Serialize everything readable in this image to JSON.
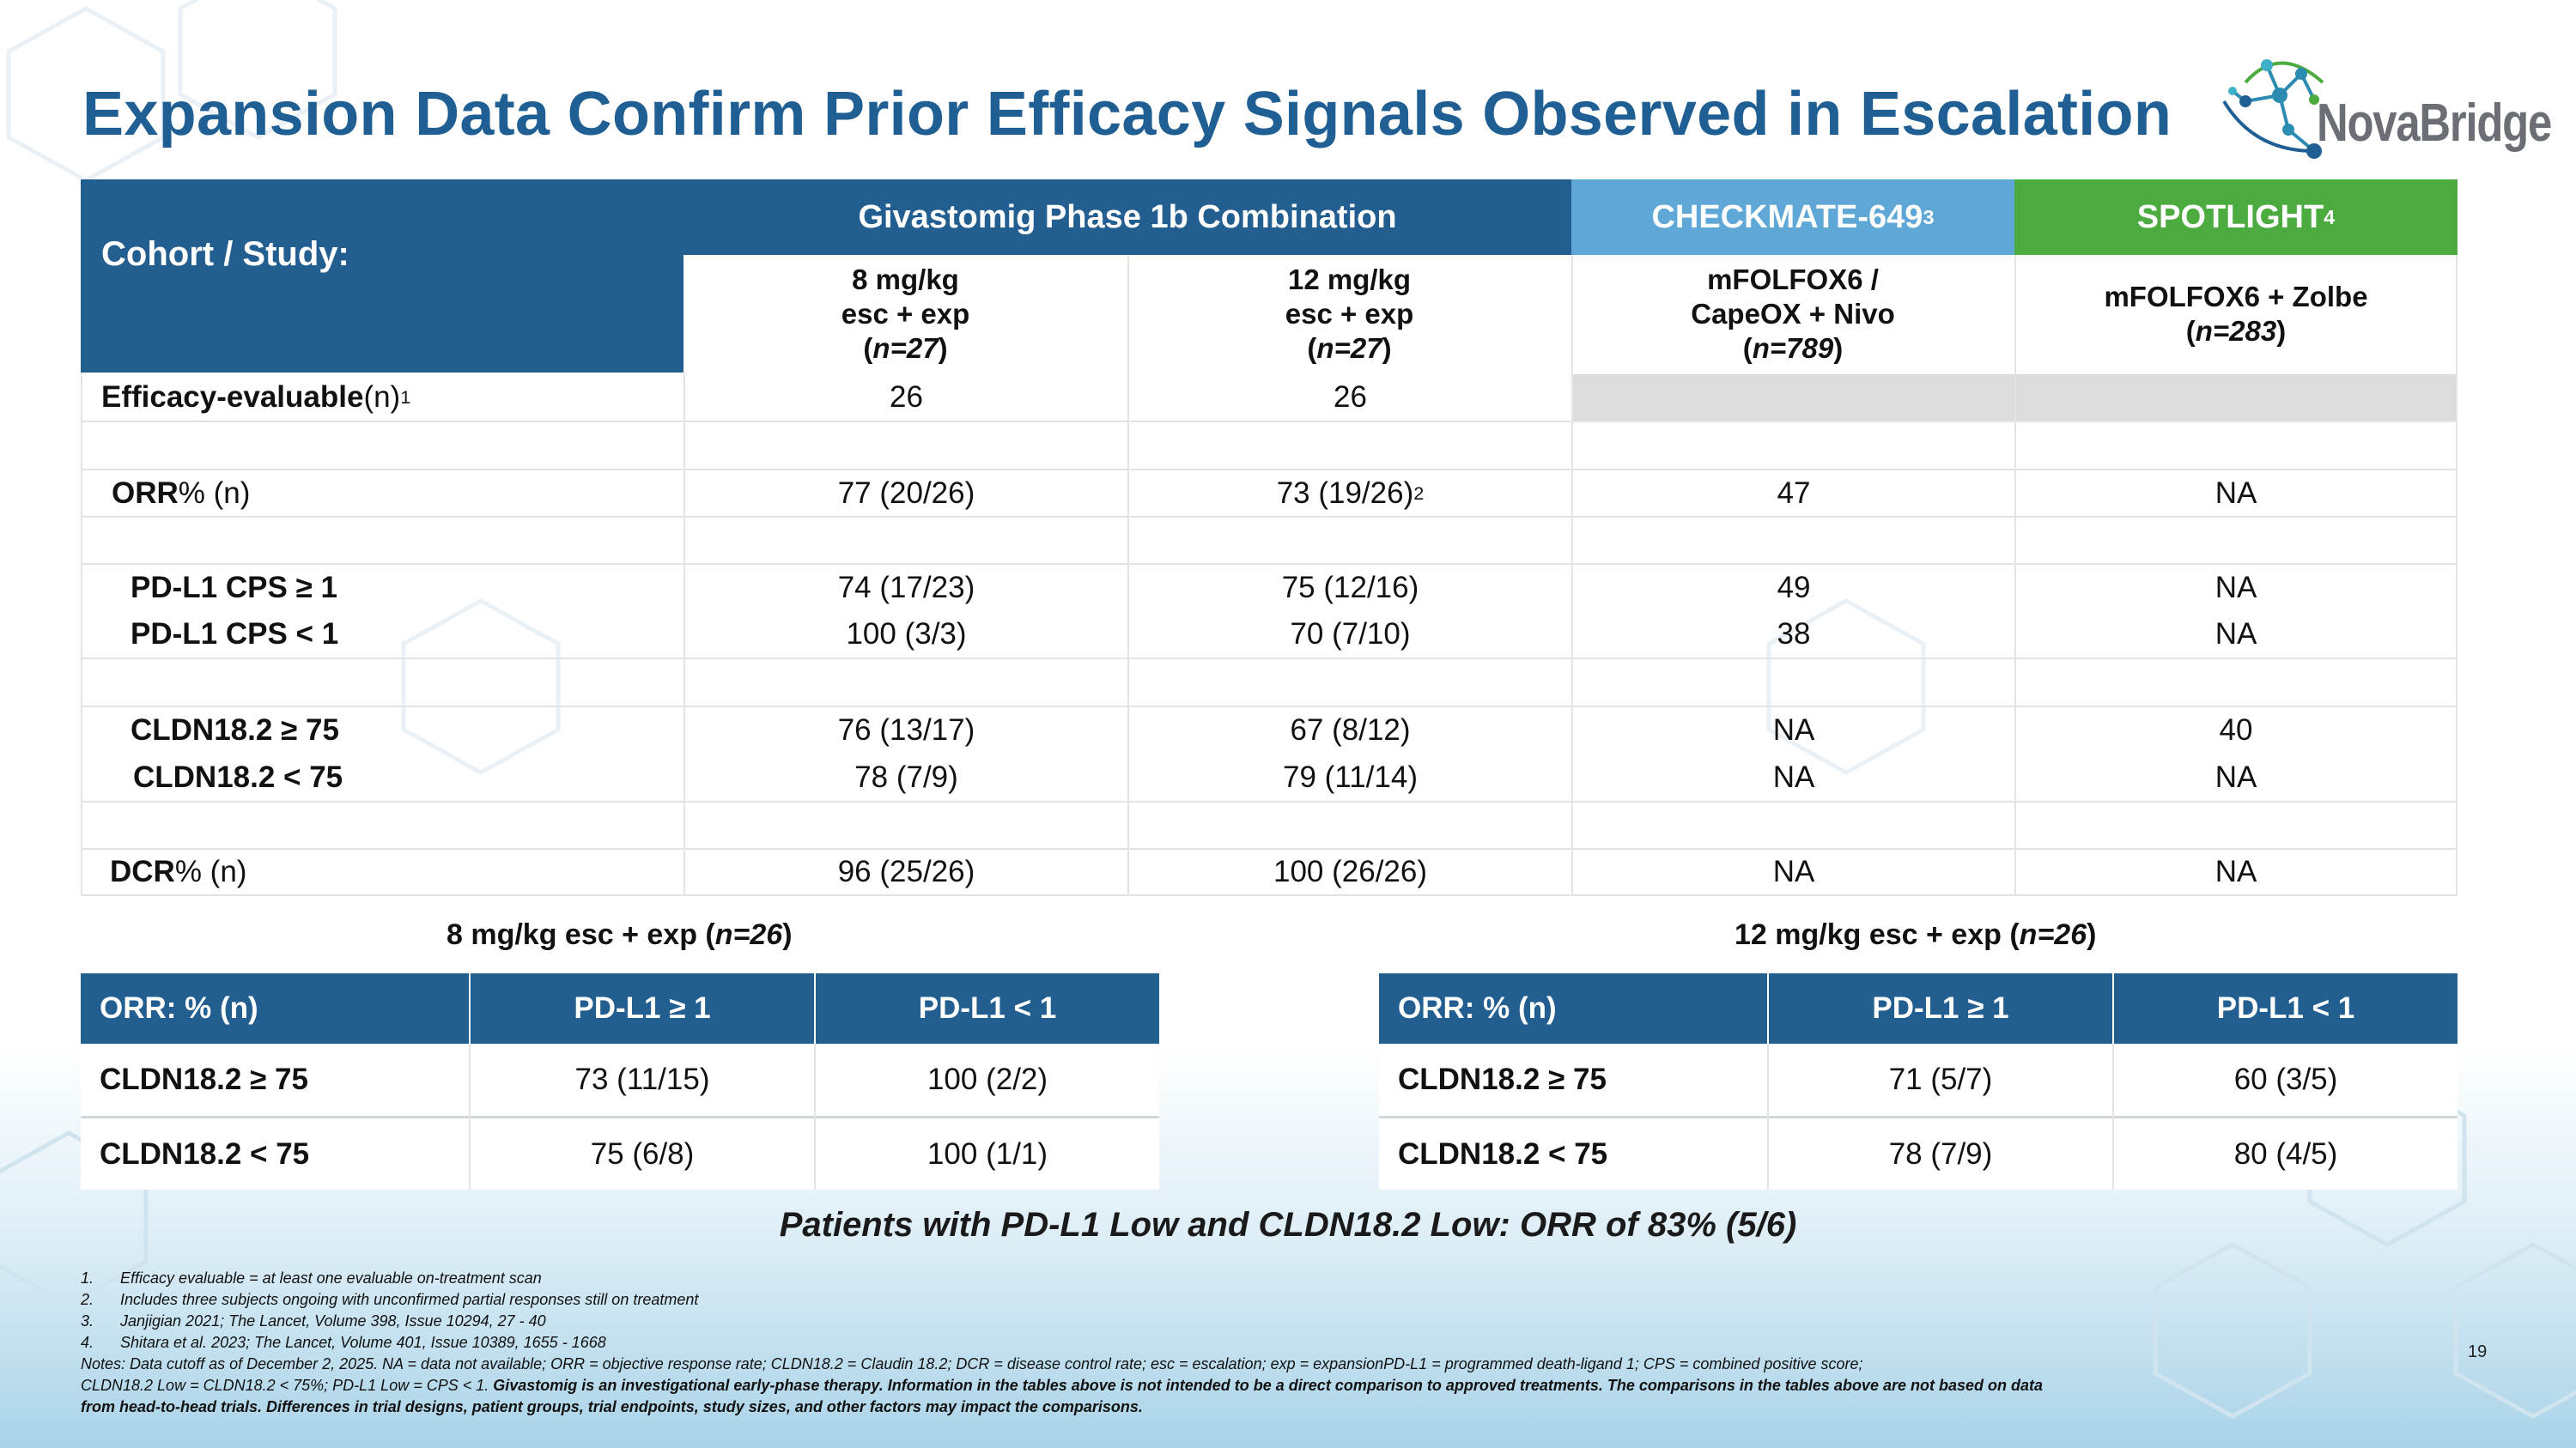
{
  "title": "Expansion Data Confirm Prior Efficacy Signals Observed in Escalation",
  "logo": {
    "name": "NovaBridge",
    "icon": "molecule-network-icon"
  },
  "colors": {
    "primary_blue": "#225e8f",
    "light_blue": "#5ea7d7",
    "green": "#4bab3f",
    "title_blue": "#1f5f93"
  },
  "main_table": {
    "cohort_label": "Cohort / Study:",
    "groups": {
      "givastomig": "Givastomig Phase 1b Combination",
      "checkmate": "CHECKMATE-649",
      "checkmate_sup": "3",
      "spotlight": "SPOTLIGHT",
      "spotlight_sup": "4"
    },
    "columns": [
      {
        "l1": "8 mg/kg",
        "l2": "esc + exp",
        "n": "n=27"
      },
      {
        "l1": "12 mg/kg",
        "l2": "esc + exp",
        "n": "n=27"
      },
      {
        "l1": "mFOLFOX6 /",
        "l2": "CapeOX + Nivo",
        "n": "n=789"
      },
      {
        "l1": "mFOLFOX6 + Zolbe",
        "n": "n=283"
      }
    ],
    "rows": {
      "evaluable": {
        "label": "Efficacy-evaluable",
        "suffix": " (n)",
        "sup": "1",
        "c1": "26",
        "c2": "26"
      },
      "orr": {
        "label": "ORR",
        "suffix": " % (n)",
        "c1": "77 (20/26)",
        "c2": "73 (19/26)",
        "c2_sup": "2",
        "c3": "47",
        "c4": "NA"
      },
      "pdl1_ge1": {
        "label": "PD-L1 CPS ≥ 1",
        "c1": "74 (17/23)",
        "c2": "75 (12/16)",
        "c3": "49",
        "c4": "NA"
      },
      "pdl1_lt1": {
        "label": "PD-L1 CPS < 1",
        "c1": "100 (3/3)",
        "c2": "70 (7/10)",
        "c3": "38",
        "c4": "NA"
      },
      "cldn_ge75": {
        "label": "CLDN18.2 ≥ 75",
        "c1": "76 (13/17)",
        "c2": "67 (8/12)",
        "c3": "NA",
        "c4": "40"
      },
      "cldn_lt75": {
        "label": "CLDN18.2 < 75",
        "c1": "78 (7/9)",
        "c2": "79 (11/14)",
        "c3": "NA",
        "c4": "NA"
      },
      "dcr": {
        "label": "DCR",
        "suffix": " % (n)",
        "c1": "96 (25/26)",
        "c2": "100 (26/26)",
        "c3": "NA",
        "c4": "NA"
      }
    }
  },
  "sub_tables": [
    {
      "caption_pre": "8 mg/kg esc + exp (",
      "caption_n": "n=26",
      "caption_post": ")",
      "headers": [
        "ORR: % (n)",
        "PD-L1 ≥ 1",
        "PD-L1 < 1"
      ],
      "rows": [
        {
          "label": "CLDN18.2 ≥ 75",
          "a": "73 (11/15)",
          "b": "100 (2/2)"
        },
        {
          "label": "CLDN18.2 < 75",
          "a": "75 (6/8)",
          "b": "100 (1/1)"
        }
      ]
    },
    {
      "caption_pre": "12 mg/kg esc + exp (",
      "caption_n": "n=26",
      "caption_post": ")",
      "headers": [
        "ORR: % (n)",
        "PD-L1 ≥ 1",
        "PD-L1 < 1"
      ],
      "rows": [
        {
          "label": "CLDN18.2 ≥ 75",
          "a": "71 (5/7)",
          "b": "60 (3/5)"
        },
        {
          "label": "CLDN18.2 < 75",
          "a": "78 (7/9)",
          "b": "80 (4/5)"
        }
      ]
    }
  ],
  "highlight": "Patients with PD-L1 Low and CLDN18.2 Low: ORR of 83% (5/6)",
  "footnotes": [
    {
      "num": "1.",
      "text": "Efficacy evaluable = at least one evaluable on-treatment scan"
    },
    {
      "num": "2.",
      "text": "Includes three subjects ongoing with unconfirmed partial responses still on treatment"
    },
    {
      "num": "3.",
      "text": "Janjigian 2021; The Lancet, Volume 398, Issue 10294, 27 - 40"
    },
    {
      "num": "4.",
      "text": "Shitara et al. 2023; The Lancet, Volume 401, Issue 10389, 1655 - 1668"
    }
  ],
  "notes_line1": "Notes: Data cutoff as of December 2, 2025. NA = data not available; ORR = objective response rate; CLDN18.2 = Claudin 18.2; DCR = disease control rate; esc = escalation; exp = expansionPD-L1 = programmed death-ligand 1; CPS = combined positive score;",
  "notes_line2_plain": "CLDN18.2 Low = CLDN18.2 < 75%; PD-L1 Low = CPS < 1. ",
  "notes_line2_bold": "Givastomig is an investigational early-phase therapy. Information in the tables above is not intended to be a direct comparison to approved treatments. The comparisons in the tables above are not based on data",
  "notes_line3_bold": "from head-to-head trials. Differences in trial designs, patient groups, trial endpoints, study sizes, and other factors may impact the comparisons.",
  "page_number": "19"
}
